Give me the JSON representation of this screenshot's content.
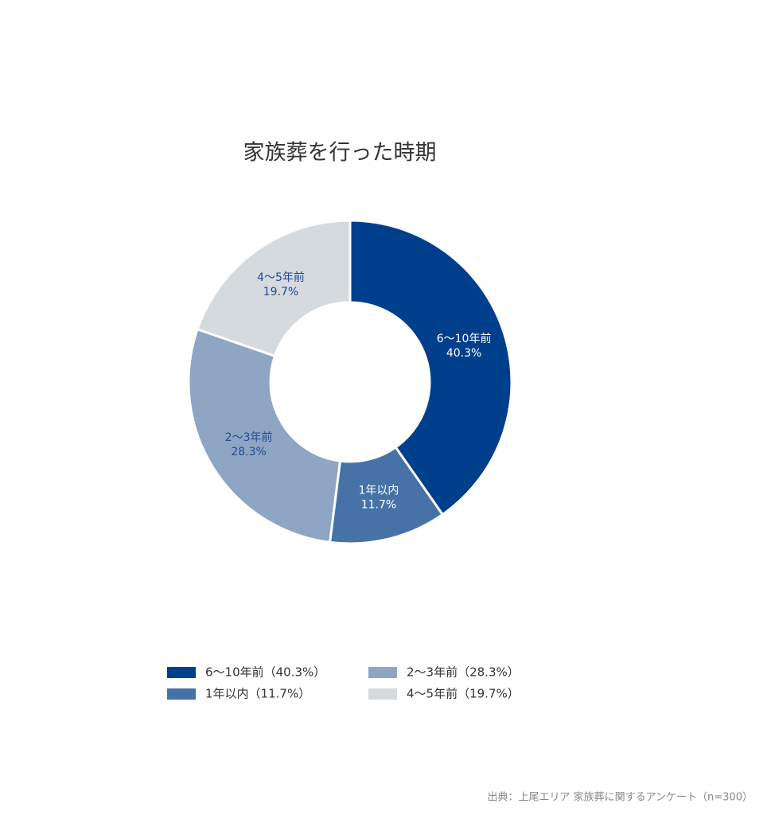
{
  "chart_data": {
    "type": "donut",
    "title": "家族葬を行った時期",
    "categories": [
      "6〜10年前",
      "1年以内",
      "2〜3年前",
      "4〜5年前"
    ],
    "values": [
      40.3,
      11.7,
      28.3,
      19.7
    ],
    "value_labels": [
      "40.3%",
      "11.7%",
      "28.3%",
      "19.7%"
    ],
    "colors": [
      "#003f8c",
      "#4672a8",
      "#8ea5c4",
      "#d5dadf"
    ],
    "legend_labels": [
      "6〜10年前（40.3%）",
      "1年以内（11.7%）",
      "2〜3年前（28.3%）",
      "4〜5年前（19.7%）"
    ],
    "source": "出典：上尾エリア 家族葬に関するアンケート（n=300）"
  }
}
